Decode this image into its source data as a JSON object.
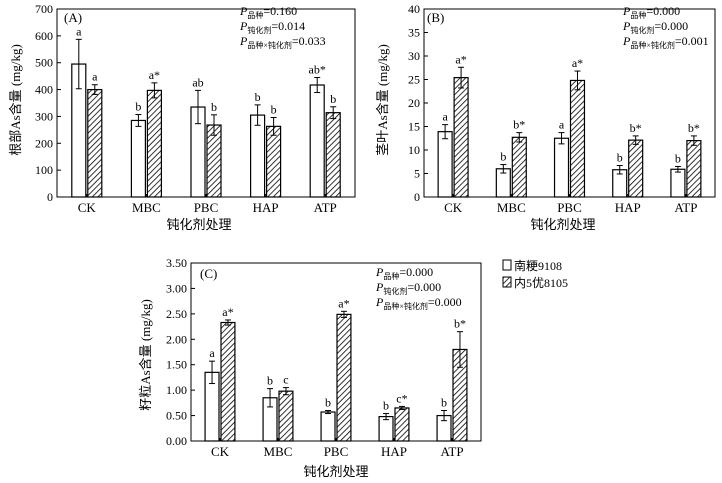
{
  "legend": [
    {
      "series": "南粳9108",
      "pattern": "open"
    },
    {
      "series": "内5优8105",
      "pattern": "hatch"
    }
  ],
  "chart_data": [
    {
      "type": "bar",
      "panel": "(A)",
      "xlabel": "钝化剂处理",
      "ylabel": "根部As含量 (mg/kg)",
      "categories": [
        "CK",
        "MBC",
        "PBC",
        "HAP",
        "ATP"
      ],
      "ylim": [
        0,
        700
      ],
      "yticks": [
        0,
        100,
        200,
        300,
        400,
        500,
        600,
        700
      ],
      "tick_decimals": 0,
      "stats": [
        {
          "p": "P",
          "sub": "品种",
          "value": "=0.160"
        },
        {
          "p": "P",
          "sub": "钝化剂",
          "value": "=0.014"
        },
        {
          "p": "P",
          "sub": "品种×钝化剂",
          "value": "=0.033"
        }
      ],
      "series": [
        {
          "name": "南粳9108",
          "values": [
            495,
            285,
            335,
            305,
            417
          ],
          "errors": [
            92,
            22,
            62,
            38,
            28
          ],
          "labels": [
            "a",
            "b",
            "ab",
            "b",
            "ab*"
          ]
        },
        {
          "name": "内5优8105",
          "values": [
            400,
            397,
            268,
            263,
            314
          ],
          "errors": [
            18,
            28,
            38,
            33,
            22
          ],
          "labels": [
            "a",
            "a*",
            "b",
            "b",
            "b"
          ]
        }
      ]
    },
    {
      "type": "bar",
      "panel": "(B)",
      "xlabel": "钝化剂处理",
      "ylabel": "茎叶As含量 (mg/kg)",
      "categories": [
        "CK",
        "MBC",
        "PBC",
        "HAP",
        "ATP"
      ],
      "ylim": [
        0,
        40
      ],
      "yticks": [
        0,
        5,
        10,
        15,
        20,
        25,
        30,
        35,
        40
      ],
      "tick_decimals": 0,
      "stats": [
        {
          "p": "P",
          "sub": "品种",
          "value": "=0.000"
        },
        {
          "p": "P",
          "sub": "钝化剂",
          "value": "=0.000"
        },
        {
          "p": "P",
          "sub": "品种×钝化剂",
          "value": "=0.001"
        }
      ],
      "series": [
        {
          "name": "南粳9108",
          "values": [
            13.9,
            6.0,
            12.5,
            5.8,
            5.9
          ],
          "errors": [
            1.5,
            0.9,
            1.2,
            0.9,
            0.6
          ],
          "labels": [
            "a",
            "b",
            "a",
            "b",
            "b"
          ]
        },
        {
          "name": "内5优8105",
          "values": [
            25.4,
            12.7,
            24.8,
            12.1,
            12.0
          ],
          "errors": [
            2.2,
            1.0,
            2.0,
            0.9,
            1.0
          ],
          "labels": [
            "a*",
            "b*",
            "a*",
            "b*",
            "b*"
          ]
        }
      ]
    },
    {
      "type": "bar",
      "panel": "(C)",
      "xlabel": "钝化剂处理",
      "ylabel": "籽粒As含量 (mg/kg)",
      "categories": [
        "CK",
        "MBC",
        "PBC",
        "HAP",
        "ATP"
      ],
      "ylim": [
        0,
        3.5
      ],
      "yticks": [
        0,
        0.5,
        1.0,
        1.5,
        2.0,
        2.5,
        3.0,
        3.5
      ],
      "tick_decimals": 2,
      "stats": [
        {
          "p": "P",
          "sub": "品种",
          "value": "=0.000"
        },
        {
          "p": "P",
          "sub": "钝化剂",
          "value": "=0.000"
        },
        {
          "p": "P",
          "sub": "品种×钝化剂",
          "value": "=0.000"
        }
      ],
      "series": [
        {
          "name": "南粳9108",
          "values": [
            1.35,
            0.85,
            0.57,
            0.48,
            0.5
          ],
          "errors": [
            0.22,
            0.18,
            0.03,
            0.06,
            0.1
          ],
          "labels": [
            "a",
            "b",
            "b",
            "b",
            "b"
          ]
        },
        {
          "name": "内5优8105",
          "values": [
            2.33,
            0.98,
            2.49,
            0.65,
            1.8
          ],
          "errors": [
            0.05,
            0.07,
            0.06,
            0.03,
            0.35
          ],
          "labels": [
            "a*",
            "c",
            "a*",
            "c*",
            "b*"
          ]
        }
      ]
    }
  ]
}
